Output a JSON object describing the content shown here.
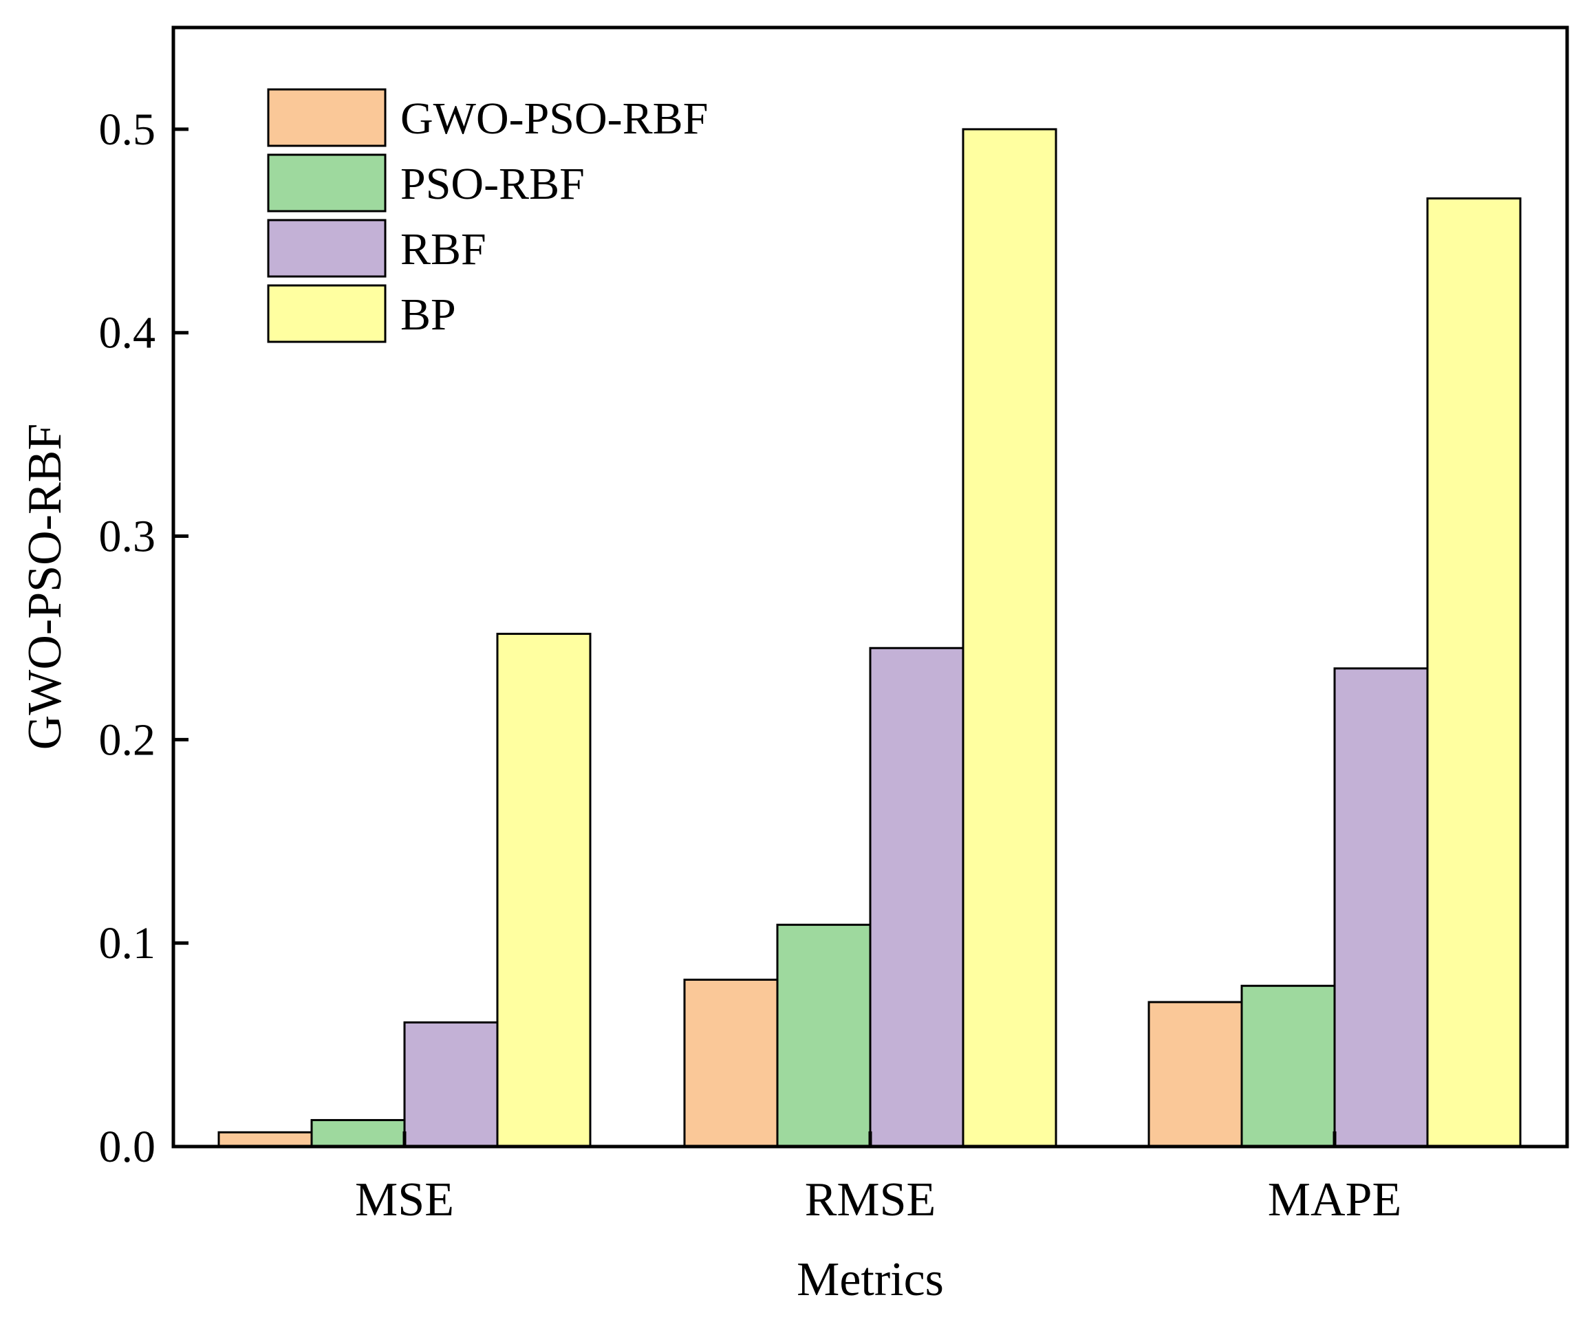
{
  "chart_data": {
    "type": "bar",
    "title": "",
    "xlabel": "Metrics",
    "ylabel": "GWO-PSO-RBF",
    "ylim": [
      0,
      0.55
    ],
    "yticks": [
      0.0,
      0.1,
      0.2,
      0.3,
      0.4,
      0.5
    ],
    "ytick_labels": [
      "0.0",
      "0.1",
      "0.2",
      "0.3",
      "0.4",
      "0.5"
    ],
    "categories": [
      "MSE",
      "RMSE",
      "MAPE"
    ],
    "series": [
      {
        "name": "GWO-PSO-RBF",
        "color": "#FAC898",
        "values": [
          0.007,
          0.082,
          0.071
        ]
      },
      {
        "name": "PSO-RBF",
        "color": "#9ED99E",
        "values": [
          0.013,
          0.109,
          0.079
        ]
      },
      {
        "name": "RBF",
        "color": "#C3B1D6",
        "values": [
          0.061,
          0.245,
          0.235
        ]
      },
      {
        "name": "BP",
        "color": "#FFFFA0",
        "values": [
          0.252,
          0.5,
          0.466
        ]
      }
    ],
    "legend_position": "top-left",
    "grid": false
  }
}
